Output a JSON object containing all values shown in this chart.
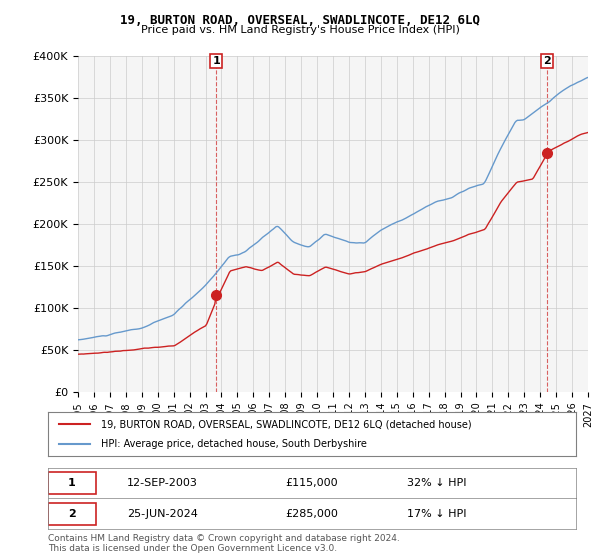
{
  "title": "19, BURTON ROAD, OVERSEAL, SWADLINCOTE, DE12 6LQ",
  "subtitle": "Price paid vs. HM Land Registry's House Price Index (HPI)",
  "legend_line1": "19, BURTON ROAD, OVERSEAL, SWADLINCOTE, DE12 6LQ (detached house)",
  "legend_line2": "HPI: Average price, detached house, South Derbyshire",
  "footnote": "Contains HM Land Registry data © Crown copyright and database right 2024.\nThis data is licensed under the Open Government Licence v3.0.",
  "transaction1_label": "1",
  "transaction1_date": "12-SEP-2003",
  "transaction1_price": "£115,000",
  "transaction1_hpi": "32% ↓ HPI",
  "transaction2_label": "2",
  "transaction2_date": "25-JUN-2024",
  "transaction2_price": "£285,000",
  "transaction2_hpi": "17% ↓ HPI",
  "ylim": [
    0,
    400000
  ],
  "yticks": [
    0,
    50000,
    100000,
    150000,
    200000,
    250000,
    300000,
    350000,
    400000
  ],
  "start_year": 1995,
  "end_year": 2027,
  "hpi_color": "#6699cc",
  "price_color": "#cc2222",
  "marker_color": "#cc2222",
  "vline_color": "#cc2222",
  "grid_color": "#cccccc",
  "background_color": "#ffffff",
  "plot_bg_color": "#f5f5f5"
}
